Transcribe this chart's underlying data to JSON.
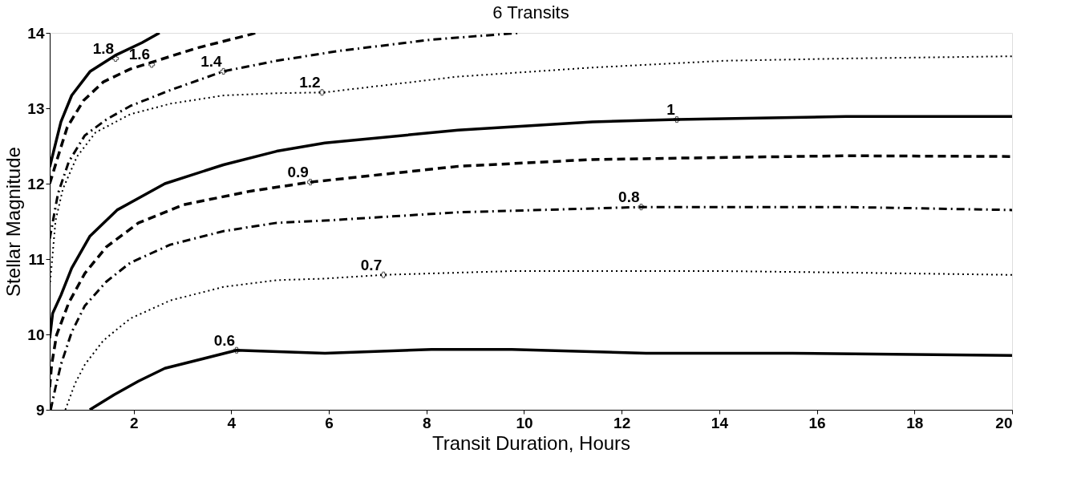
{
  "chart_data": {
    "type": "line",
    "title": "6 Transits",
    "xlabel": "Transit Duration, Hours",
    "ylabel": "Stellar Magnitude",
    "xlim": [
      0.28,
      20
    ],
    "xticks": [
      2,
      4,
      6,
      8,
      10,
      12,
      14,
      16,
      18,
      20
    ],
    "ylim": [
      9,
      14
    ],
    "yticks": [
      9,
      10,
      11,
      12,
      13,
      14
    ],
    "grid": false,
    "marker": "none",
    "series": [
      {
        "color": "#000000",
        "line_style": "solid",
        "x": [
          0.28,
          0.51,
          0.73,
          1.11,
          1.62,
          2.17,
          2.53
        ],
        "values": [
          12.22,
          12.82,
          13.17,
          13.49,
          13.7,
          13.87,
          14.0
        ]
      },
      {
        "color": "#000000",
        "line_style": "dashed",
        "x": [
          0.28,
          0.45,
          0.64,
          0.97,
          1.38,
          1.93,
          2.37,
          3.3,
          4.4,
          4.5
        ],
        "values": [
          12.0,
          12.36,
          12.75,
          13.1,
          13.35,
          13.52,
          13.61,
          13.8,
          13.98,
          14.0
        ]
      },
      {
        "color": "#000000",
        "line_style": "dashdot",
        "x": [
          0.28,
          0.45,
          0.67,
          1.0,
          1.44,
          1.93,
          2.75,
          3.84,
          4.93,
          6.2,
          8.1,
          9.9
        ],
        "values": [
          11.27,
          11.87,
          12.29,
          12.64,
          12.85,
          13.03,
          13.24,
          13.49,
          13.63,
          13.76,
          13.91,
          14.0
        ]
      },
      {
        "color": "#000000",
        "line_style": "dotted",
        "x": [
          0.28,
          0.4,
          0.55,
          0.84,
          1.22,
          1.93,
          2.75,
          3.84,
          4.93,
          5.9,
          8.65,
          11.4,
          14.1,
          16.6,
          20
        ],
        "values": [
          10.63,
          11.51,
          11.93,
          12.36,
          12.68,
          12.92,
          13.06,
          13.17,
          13.2,
          13.21,
          13.42,
          13.54,
          13.63,
          13.66,
          13.69
        ]
      },
      {
        "color": "#000000",
        "line_style": "solid",
        "x": [
          0.28,
          0.34,
          0.51,
          0.73,
          1.1,
          1.66,
          2.64,
          3.84,
          4.93,
          5.92,
          8.65,
          11.4,
          13.13,
          16.6,
          20
        ],
        "values": [
          9.95,
          10.28,
          10.52,
          10.88,
          11.3,
          11.65,
          12.0,
          12.25,
          12.43,
          12.54,
          12.71,
          12.82,
          12.85,
          12.89,
          12.89
        ]
      },
      {
        "color": "#000000",
        "line_style": "dashed",
        "x": [
          0.28,
          0.32,
          0.42,
          0.67,
          1.0,
          1.44,
          2.1,
          3.02,
          4.39,
          5.62,
          8.65,
          11.4,
          13.3,
          16.6,
          20
        ],
        "values": [
          9.3,
          9.6,
          9.99,
          10.42,
          10.81,
          11.16,
          11.48,
          11.72,
          11.9,
          12.02,
          12.23,
          12.32,
          12.34,
          12.37,
          12.36
        ]
      },
      {
        "color": "#000000",
        "line_style": "dashdot",
        "x": [
          0.3,
          0.4,
          0.51,
          0.73,
          1.0,
          1.44,
          1.93,
          2.75,
          3.84,
          4.93,
          5.92,
          8.65,
          11.4,
          12.4,
          16.6,
          20
        ],
        "values": [
          9.0,
          9.3,
          9.6,
          10.03,
          10.38,
          10.7,
          10.95,
          11.19,
          11.37,
          11.48,
          11.51,
          11.62,
          11.67,
          11.69,
          11.69,
          11.65
        ]
      },
      {
        "color": "#000000",
        "line_style": "dotted",
        "x": [
          0.6,
          0.8,
          1.0,
          1.38,
          1.93,
          2.75,
          3.84,
          4.93,
          5.92,
          7.12,
          9.75,
          14.1,
          16.6,
          20
        ],
        "values": [
          9.0,
          9.35,
          9.6,
          9.92,
          10.21,
          10.45,
          10.63,
          10.72,
          10.74,
          10.79,
          10.84,
          10.84,
          10.82,
          10.79
        ]
      },
      {
        "color": "#000000",
        "line_style": "solid",
        "x": [
          1.1,
          1.6,
          2.1,
          2.64,
          4.11,
          5.92,
          8.1,
          9.75,
          12.5,
          15.5,
          20
        ],
        "values": [
          9.0,
          9.2,
          9.38,
          9.55,
          9.79,
          9.75,
          9.8,
          9.8,
          9.75,
          9.75,
          9.72
        ]
      }
    ],
    "annotations": [
      {
        "text": "1.8",
        "x": 1.63,
        "y": 13.66
      },
      {
        "text": "1.6",
        "x": 2.37,
        "y": 13.58
      },
      {
        "text": "1.4",
        "x": 3.84,
        "y": 13.49
      },
      {
        "text": "1.2",
        "x": 5.86,
        "y": 13.21
      },
      {
        "text": "1",
        "x": 13.13,
        "y": 12.85
      },
      {
        "text": "0.9",
        "x": 5.62,
        "y": 12.02
      },
      {
        "text": "0.8",
        "x": 12.4,
        "y": 11.69
      },
      {
        "text": "0.7",
        "x": 7.12,
        "y": 10.79
      },
      {
        "text": "0.6",
        "x": 4.11,
        "y": 9.79
      }
    ]
  }
}
